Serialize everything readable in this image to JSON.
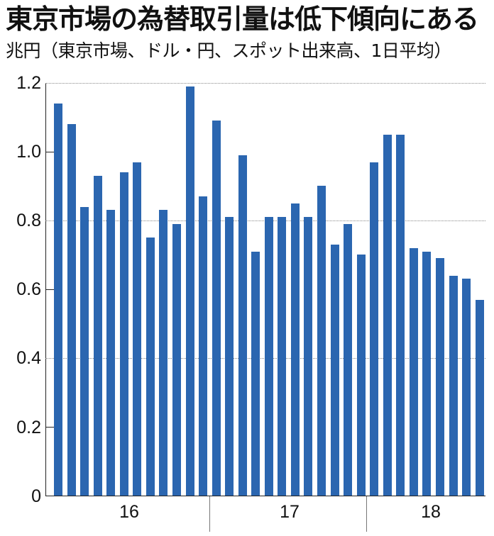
{
  "title": "東京市場の為替取引量は低下傾向にある",
  "subtitle": "兆円（東京市場、ドル・円、スポット出来高、1日平均）",
  "colors": {
    "bar": "#2b66b0",
    "axis": "#222222",
    "grid": "#888888"
  },
  "axis": {
    "y_ticks": [
      "0",
      "0.2",
      "0.4",
      "0.6",
      "0.8",
      "1.0",
      "1.2"
    ],
    "x_groups": [
      "16",
      "17",
      "18"
    ]
  },
  "chart_data": {
    "type": "bar",
    "title": "東京市場の為替取引量は低下傾向にある",
    "subtitle": "兆円（東京市場、ドル・円、スポット出来高、1日平均）",
    "xlabel": "",
    "ylabel": "兆円",
    "ylim": [
      0,
      1.2
    ],
    "y_ticks": [
      0,
      0.2,
      0.4,
      0.6,
      0.8,
      1.0,
      1.2
    ],
    "gridlines_dotted_at": [
      0.4,
      0.8,
      1.2
    ],
    "legend": null,
    "x_group_labels": [
      {
        "label": "16",
        "months": 12
      },
      {
        "label": "17",
        "months": 12
      },
      {
        "label": "18",
        "months": 9
      }
    ],
    "categories": [
      "16-01",
      "16-02",
      "16-03",
      "16-04",
      "16-05",
      "16-06",
      "16-07",
      "16-08",
      "16-09",
      "16-10",
      "16-11",
      "16-12",
      "17-01",
      "17-02",
      "17-03",
      "17-04",
      "17-05",
      "17-06",
      "17-07",
      "17-08",
      "17-09",
      "17-10",
      "17-11",
      "17-12",
      "18-01",
      "18-02",
      "18-03",
      "18-04",
      "18-05",
      "18-06",
      "18-07",
      "18-08",
      "18-09"
    ],
    "values": [
      1.14,
      1.08,
      0.84,
      0.93,
      0.83,
      0.94,
      0.97,
      0.75,
      0.83,
      0.79,
      1.19,
      0.87,
      1.09,
      0.81,
      0.99,
      0.71,
      0.81,
      0.81,
      0.85,
      0.81,
      0.9,
      0.73,
      0.79,
      0.7,
      0.97,
      1.05,
      1.05,
      0.72,
      0.71,
      0.69,
      0.64,
      0.63,
      0.57
    ]
  }
}
